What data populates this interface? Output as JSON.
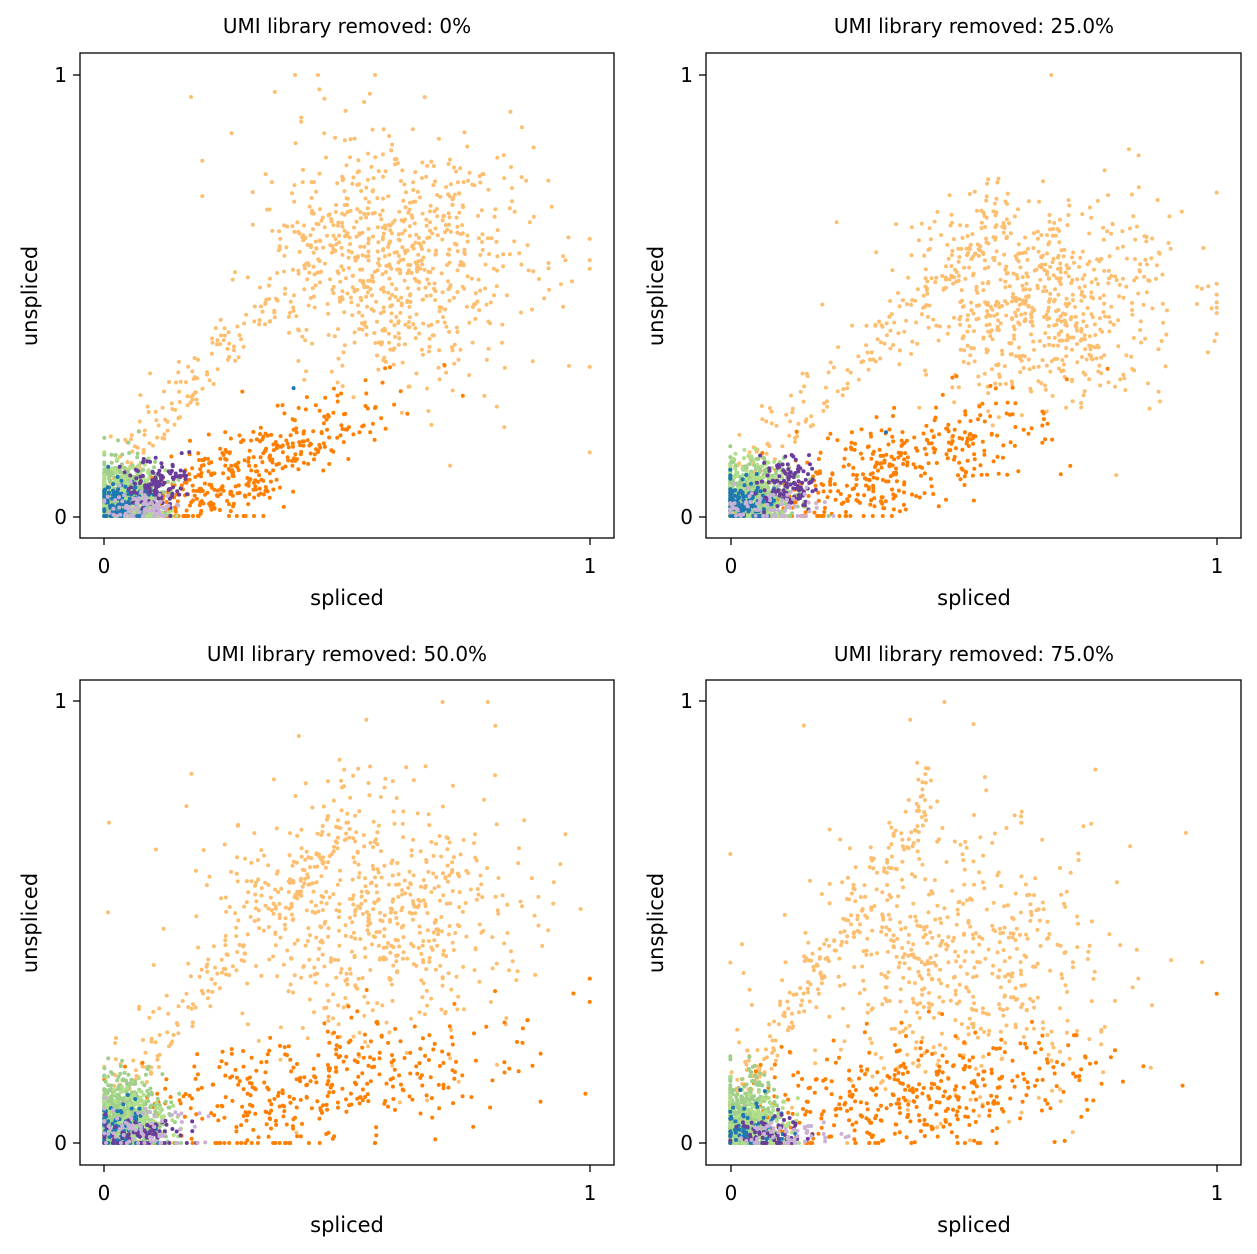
{
  "figure": {
    "colors": {
      "light_orange": "#fdbf6f",
      "dark_orange": "#ff7f00",
      "green": "#9fcf8a",
      "light_green": "#b2df8a",
      "blue": "#1f78b4",
      "purple": "#6a3d9a",
      "lavender": "#cab2d6"
    }
  },
  "chart_data": [
    {
      "type": "scatter",
      "title": "UMI library removed: 0%",
      "xlabel": "spliced",
      "ylabel": "unspliced",
      "xlim": [
        -0.05,
        1.05
      ],
      "ylim": [
        -0.05,
        1.05
      ],
      "xticks": [
        0,
        1
      ],
      "yticks": [
        0,
        1
      ],
      "grid": false,
      "clusters": [
        {
          "color_key": "light_orange",
          "n": 900,
          "cx": 0.62,
          "cy": 0.58,
          "sx": 0.14,
          "sy": 0.14,
          "upper_arm": true,
          "arm_gain": 0.75
        },
        {
          "color_key": "dark_orange",
          "n": 420,
          "cx": 0.28,
          "cy": 0.1,
          "sx": 0.14,
          "sy": 0.05,
          "trend": 0.5
        },
        {
          "color_key": "green",
          "n": 650,
          "cx": 0.04,
          "cy": 0.04,
          "sx": 0.04,
          "sy": 0.04
        },
        {
          "color_key": "light_green",
          "n": 200,
          "cx": 0.05,
          "cy": 0.05,
          "sx": 0.04,
          "sy": 0.04
        },
        {
          "color_key": "blue",
          "n": 140,
          "cx": 0.03,
          "cy": 0.03,
          "sx": 0.03,
          "sy": 0.03
        },
        {
          "color_key": "purple",
          "n": 120,
          "cx": 0.11,
          "cy": 0.07,
          "sx": 0.03,
          "sy": 0.03
        },
        {
          "color_key": "lavender",
          "n": 80,
          "cx": 0.07,
          "cy": 0.02,
          "sx": 0.04,
          "sy": 0.02
        }
      ],
      "highlights": [
        {
          "color_key": "light_orange",
          "x": 0.44,
          "y": 1.0
        },
        {
          "color_key": "light_orange",
          "x": 0.66,
          "y": 0.95
        },
        {
          "color_key": "light_orange",
          "x": 1.0,
          "y": 0.58
        },
        {
          "color_key": "blue",
          "x": 0.39,
          "y": 0.29
        }
      ]
    },
    {
      "type": "scatter",
      "title": "UMI library removed: 25.0%",
      "xlabel": "spliced",
      "ylabel": "unspliced",
      "xlim": [
        -0.05,
        1.05
      ],
      "ylim": [
        -0.05,
        1.05
      ],
      "xticks": [
        0,
        1
      ],
      "yticks": [
        0,
        1
      ],
      "grid": false,
      "clusters": [
        {
          "color_key": "light_orange",
          "n": 850,
          "cx": 0.64,
          "cy": 0.48,
          "sx": 0.14,
          "sy": 0.12,
          "upper_arm": true,
          "arm_gain": 0.7
        },
        {
          "color_key": "dark_orange",
          "n": 380,
          "cx": 0.32,
          "cy": 0.1,
          "sx": 0.17,
          "sy": 0.06,
          "trend": 0.35
        },
        {
          "color_key": "green",
          "n": 600,
          "cx": 0.04,
          "cy": 0.04,
          "sx": 0.04,
          "sy": 0.04
        },
        {
          "color_key": "light_green",
          "n": 200,
          "cx": 0.05,
          "cy": 0.05,
          "sx": 0.04,
          "sy": 0.04
        },
        {
          "color_key": "blue",
          "n": 130,
          "cx": 0.03,
          "cy": 0.03,
          "sx": 0.03,
          "sy": 0.03
        },
        {
          "color_key": "purple",
          "n": 110,
          "cx": 0.12,
          "cy": 0.07,
          "sx": 0.03,
          "sy": 0.03
        },
        {
          "color_key": "lavender",
          "n": 70,
          "cx": 0.08,
          "cy": 0.02,
          "sx": 0.05,
          "sy": 0.02
        }
      ],
      "highlights": [
        {
          "color_key": "light_orange",
          "x": 0.66,
          "y": 1.0
        },
        {
          "color_key": "light_orange",
          "x": 1.0,
          "y": 0.46
        },
        {
          "color_key": "light_orange",
          "x": 0.96,
          "y": 0.52
        },
        {
          "color_key": "blue",
          "x": 0.32,
          "y": 0.19
        }
      ]
    },
    {
      "type": "scatter",
      "title": "UMI library removed: 50.0%",
      "xlabel": "spliced",
      "ylabel": "unspliced",
      "xlim": [
        -0.05,
        1.05
      ],
      "ylim": [
        -0.05,
        1.05
      ],
      "xticks": [
        0,
        1
      ],
      "yticks": [
        0,
        1
      ],
      "grid": false,
      "clusters": [
        {
          "color_key": "light_orange",
          "n": 800,
          "cx": 0.56,
          "cy": 0.52,
          "sx": 0.16,
          "sy": 0.15,
          "upper_arm": true,
          "arm_gain": 0.75
        },
        {
          "color_key": "dark_orange",
          "n": 380,
          "cx": 0.42,
          "cy": 0.12,
          "sx": 0.2,
          "sy": 0.08,
          "trend": 0.2
        },
        {
          "color_key": "green",
          "n": 650,
          "cx": 0.04,
          "cy": 0.05,
          "sx": 0.04,
          "sy": 0.05
        },
        {
          "color_key": "light_green",
          "n": 180,
          "cx": 0.05,
          "cy": 0.05,
          "sx": 0.04,
          "sy": 0.04
        },
        {
          "color_key": "blue",
          "n": 90,
          "cx": 0.03,
          "cy": 0.03,
          "sx": 0.03,
          "sy": 0.03
        },
        {
          "color_key": "purple",
          "n": 80,
          "cx": 0.07,
          "cy": 0.02,
          "sx": 0.05,
          "sy": 0.02
        },
        {
          "color_key": "lavender",
          "n": 70,
          "cx": 0.1,
          "cy": 0.03,
          "sx": 0.06,
          "sy": 0.03
        }
      ],
      "highlights": [
        {
          "color_key": "light_orange",
          "x": 0.79,
          "y": 1.0
        },
        {
          "color_key": "light_orange",
          "x": 0.54,
          "y": 0.96
        },
        {
          "color_key": "light_orange",
          "x": 0.95,
          "y": 0.7
        },
        {
          "color_key": "dark_orange",
          "x": 1.0,
          "y": 0.32
        }
      ]
    },
    {
      "type": "scatter",
      "title": "UMI library removed: 75.0%",
      "xlabel": "spliced",
      "ylabel": "unspliced",
      "xlim": [
        -0.05,
        1.05
      ],
      "ylim": [
        -0.05,
        1.05
      ],
      "xticks": [
        0,
        1
      ],
      "yticks": [
        0,
        1
      ],
      "grid": false,
      "clusters": [
        {
          "color_key": "light_orange",
          "n": 750,
          "cx": 0.46,
          "cy": 0.4,
          "sx": 0.16,
          "sy": 0.16,
          "upper_arm": true,
          "arm_gain": 0.8
        },
        {
          "color_key": "dark_orange",
          "n": 400,
          "cx": 0.36,
          "cy": 0.1,
          "sx": 0.2,
          "sy": 0.07,
          "trend": 0.1
        },
        {
          "color_key": "green",
          "n": 550,
          "cx": 0.03,
          "cy": 0.05,
          "sx": 0.03,
          "sy": 0.05
        },
        {
          "color_key": "light_green",
          "n": 160,
          "cx": 0.05,
          "cy": 0.04,
          "sx": 0.04,
          "sy": 0.04
        },
        {
          "color_key": "blue",
          "n": 60,
          "cx": 0.04,
          "cy": 0.03,
          "sx": 0.04,
          "sy": 0.03
        },
        {
          "color_key": "purple",
          "n": 60,
          "cx": 0.08,
          "cy": 0.02,
          "sx": 0.04,
          "sy": 0.02
        },
        {
          "color_key": "lavender",
          "n": 50,
          "cx": 0.12,
          "cy": 0.02,
          "sx": 0.06,
          "sy": 0.02
        }
      ],
      "highlights": [
        {
          "color_key": "light_orange",
          "x": 0.44,
          "y": 1.0
        },
        {
          "color_key": "light_orange",
          "x": 0.5,
          "y": 0.95
        },
        {
          "color_key": "light_orange",
          "x": 0.37,
          "y": 0.96
        },
        {
          "color_key": "light_orange",
          "x": 0.97,
          "y": 0.41
        },
        {
          "color_key": "dark_orange",
          "x": 0.93,
          "y": 0.13
        }
      ]
    }
  ]
}
